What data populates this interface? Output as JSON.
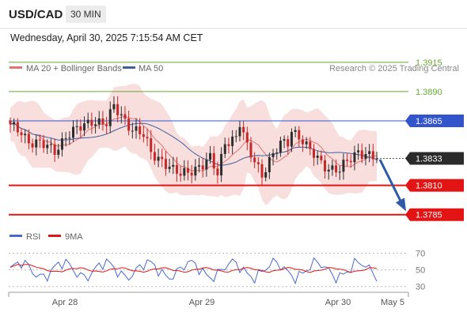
{
  "header": {
    "symbol": "USD/CAD",
    "timeframe": "30 MIN",
    "timestamp": "Wednesday, April 30, 2025 7:15:54 AM CET"
  },
  "colors": {
    "up": "#2e2e2e",
    "down": "#c62828",
    "ma20": "#e57373",
    "ma50": "#3f5f9f",
    "band_fill": "#f9dede",
    "resistance": "#66aa33",
    "pivot": "#3355cc",
    "support": "#e31414",
    "rsi": "#4a68d0",
    "rsi_ma": "#e31414",
    "arrow": "#2f5aa8"
  },
  "chart_data": [
    {
      "type": "candlestick",
      "legend": [
        {
          "label": "MA 20 + Bollinger Bands",
          "color": "#e57373"
        },
        {
          "label": "MA 50",
          "color": "#3f5f9f"
        }
      ],
      "watermark": "Research © 2025 Trading Central",
      "x_tick_labels": [
        "Apr 28",
        "Apr 29",
        "Apr 30",
        "May 5"
      ],
      "ylim": [
        1.377,
        1.3925
      ],
      "levels": [
        {
          "value": 1.3915,
          "label": "1.3915",
          "kind": "resistance"
        },
        {
          "value": 1.389,
          "label": "1.3890",
          "kind": "resistance"
        },
        {
          "value": 1.3865,
          "label": "1.3865",
          "kind": "pivot"
        },
        {
          "value": 1.381,
          "label": "1.3810",
          "kind": "support"
        },
        {
          "value": 1.3785,
          "label": "1.3785",
          "kind": "support"
        }
      ],
      "last_price": {
        "value": 1.3833,
        "label": "1.3833"
      },
      "forecast_arrow": {
        "from": 1.3832,
        "to": 1.379
      }
    },
    {
      "type": "line",
      "legend": [
        {
          "label": "RSI",
          "color": "#4a68d0"
        },
        {
          "label": "9MA",
          "color": "#e31414"
        }
      ],
      "y_ticks": [
        70,
        50,
        30
      ],
      "ylim": [
        25,
        78
      ]
    }
  ]
}
